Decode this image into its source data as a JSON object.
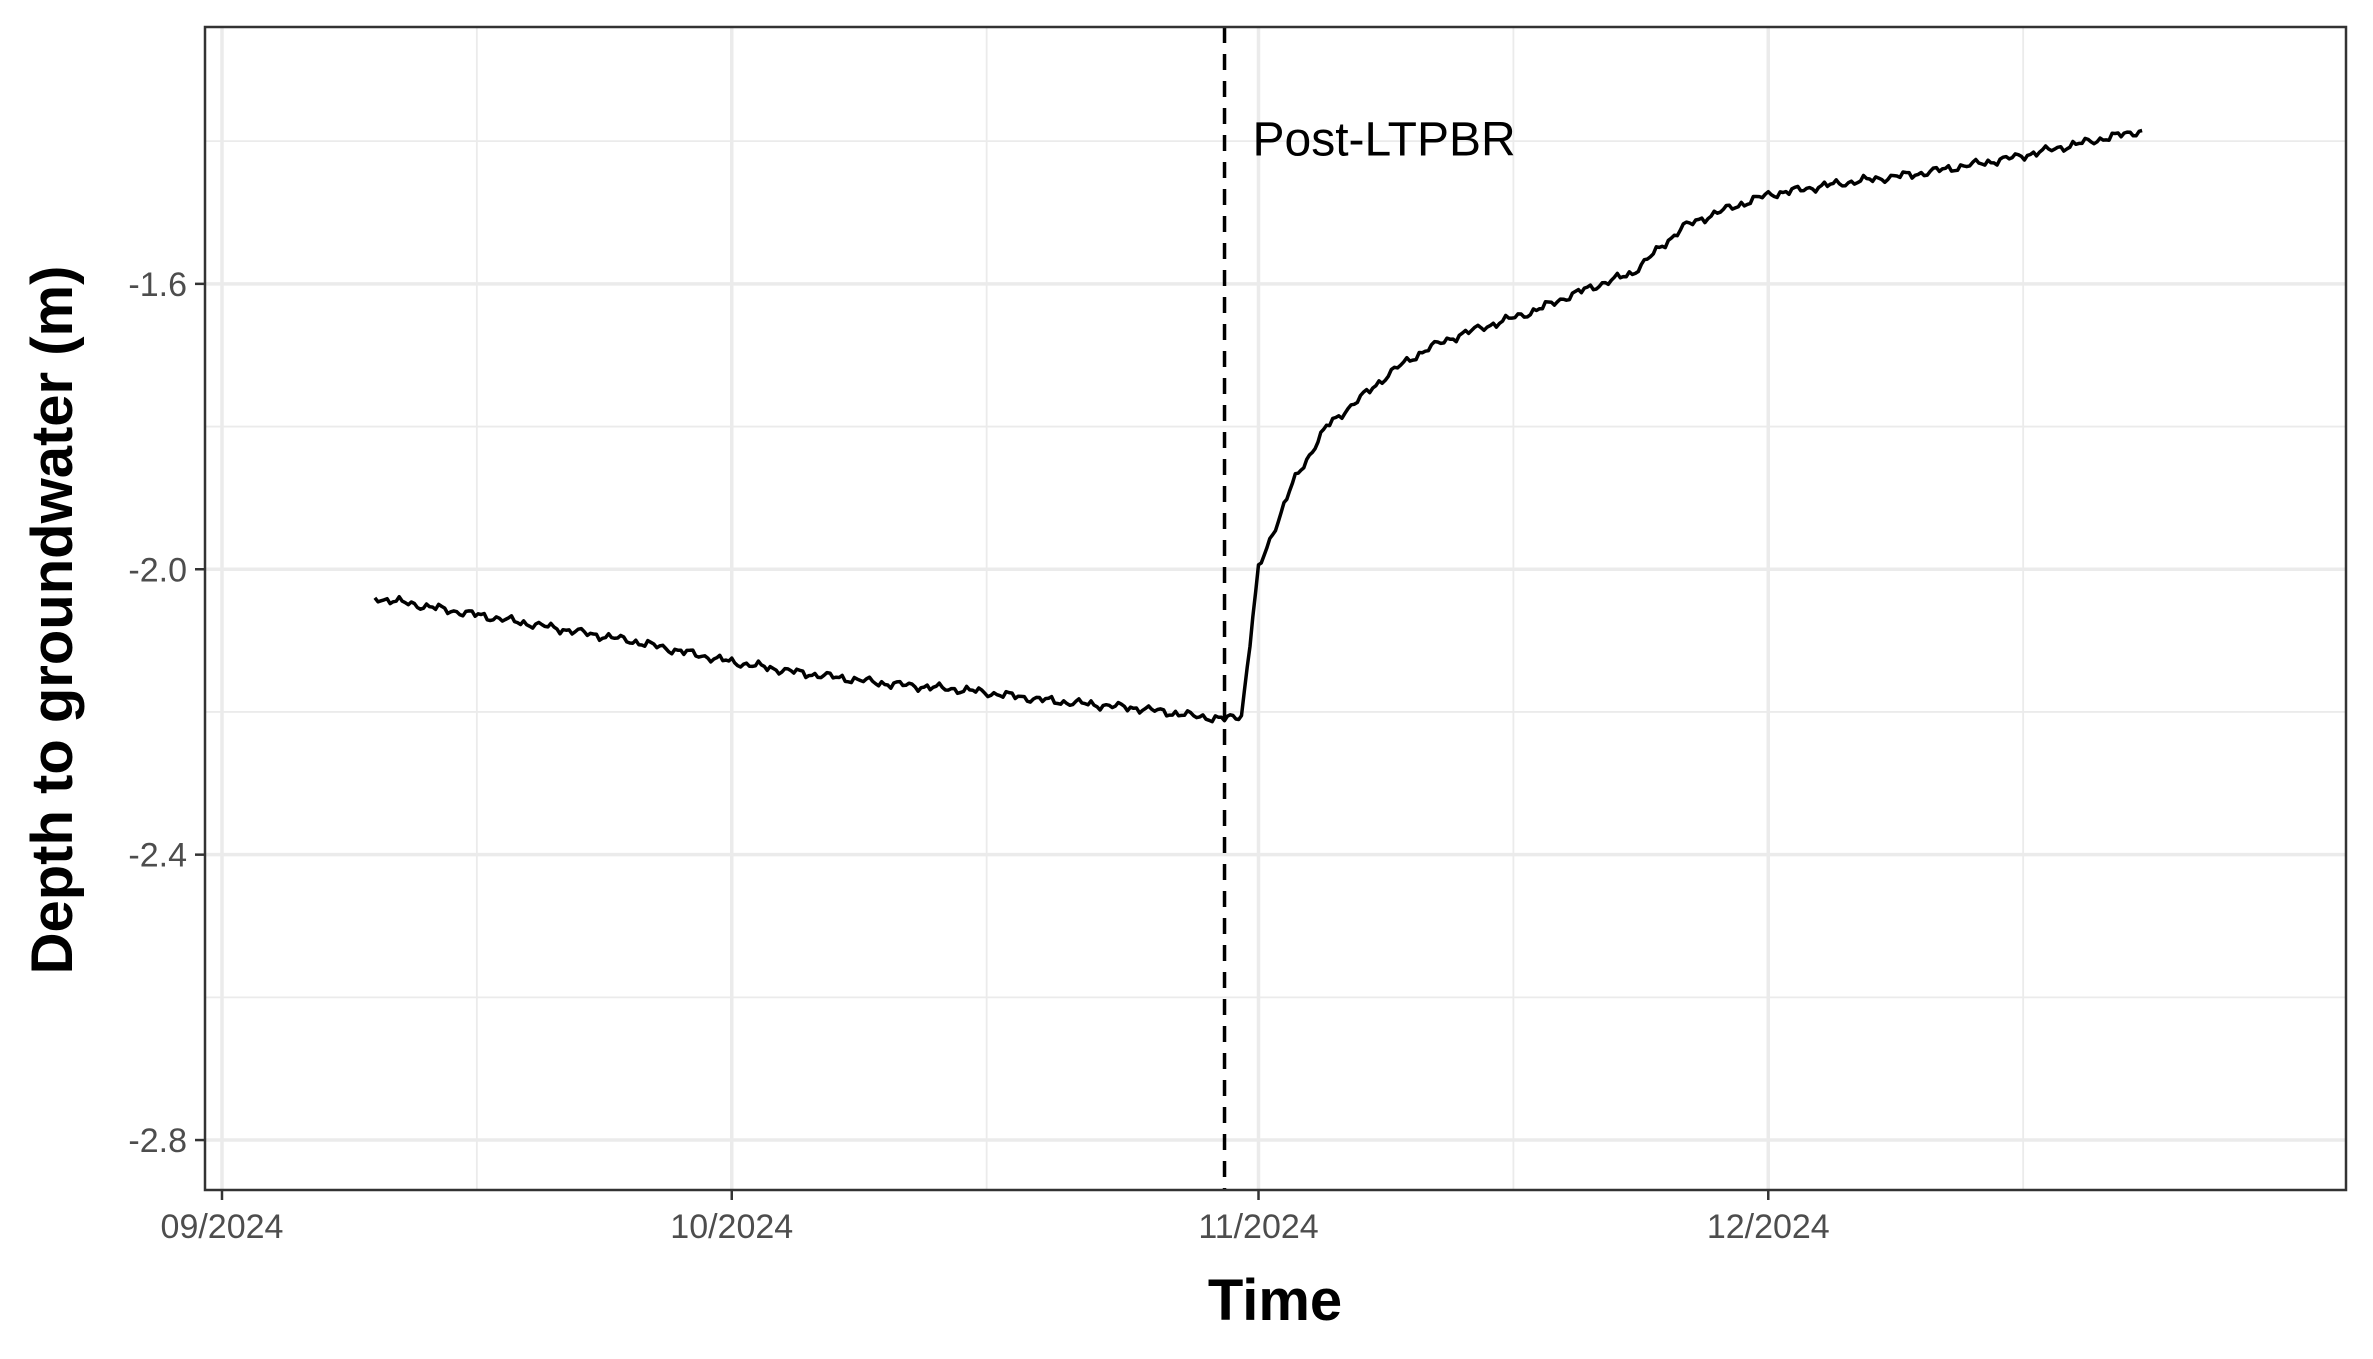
{
  "chart_data": {
    "type": "line",
    "title": "",
    "xlabel": "Time",
    "ylabel": "Depth to groundwater (m)",
    "x_axis": {
      "type": "date",
      "range": [
        "2024-08-31",
        "2025-01-04"
      ],
      "ticks": [
        "2024-09-01",
        "2024-10-01",
        "2024-11-01",
        "2024-12-01"
      ],
      "tick_labels": [
        "09/2024",
        "10/2024",
        "11/2024",
        "12/2024"
      ],
      "minor_ticks": [
        "2024-09-16",
        "2024-10-16",
        "2024-11-16",
        "2024-12-16"
      ]
    },
    "y_axis": {
      "range": [
        -2.87,
        -1.24
      ],
      "ticks": [
        -2.8,
        -2.4,
        -2.0,
        -1.6
      ],
      "tick_labels": [
        "-2.8",
        "-2.4",
        "-2.0",
        "-1.6"
      ],
      "minor_ticks": [
        -2.6,
        -2.2,
        -1.8,
        -1.4
      ]
    },
    "grid": true,
    "legend": "none",
    "series": [
      {
        "color": "#000000",
        "x": [
          "2024-09-10",
          "2024-09-15",
          "2024-09-20",
          "2024-09-25",
          "2024-10-01",
          "2024-10-05",
          "2024-10-10",
          "2024-10-15",
          "2024-10-20",
          "2024-10-25",
          "2024-10-28",
          "2024-10-30",
          "2024-10-31",
          "2024-11-01",
          "2024-11-02",
          "2024-11-03",
          "2024-11-04",
          "2024-11-05",
          "2024-11-07",
          "2024-11-09",
          "2024-11-11",
          "2024-11-13",
          "2024-11-15",
          "2024-11-17",
          "2024-11-20",
          "2024-11-23",
          "2024-11-26",
          "2024-11-28",
          "2024-12-01",
          "2024-12-05",
          "2024-12-10",
          "2024-12-15",
          "2024-12-20",
          "2024-12-23"
        ],
        "y": [
          -2.04,
          -2.06,
          -2.08,
          -2.1,
          -2.13,
          -2.145,
          -2.16,
          -2.17,
          -2.185,
          -2.195,
          -2.205,
          -2.21,
          -2.205,
          -2.0,
          -1.94,
          -1.88,
          -1.84,
          -1.8,
          -1.76,
          -1.72,
          -1.69,
          -1.67,
          -1.655,
          -1.64,
          -1.61,
          -1.585,
          -1.52,
          -1.5,
          -1.475,
          -1.46,
          -1.445,
          -1.425,
          -1.4,
          -1.385
        ]
      }
    ],
    "annotations": [
      {
        "type": "vline",
        "x": "2024-10-30",
        "style": "dashed",
        "color": "#000000"
      },
      {
        "type": "text",
        "x": "2024-11-01",
        "y": -1.42,
        "text": "Post-LTPBR"
      }
    ]
  }
}
